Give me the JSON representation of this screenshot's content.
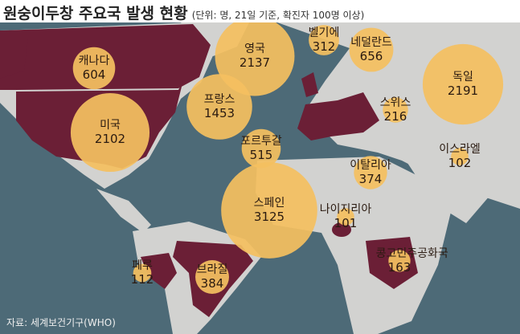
{
  "title": "원숭이두창 주요국 발생 현황",
  "subtitle": "(단위: 명, 21일 기준, 확진자 100명 이상)",
  "source": "자료: 세계보건기구(WHO)",
  "countries": [
    {
      "name": "캐나다",
      "value": 604
    },
    {
      "name": "영국",
      "value": 2137
    },
    {
      "name": "벨기에",
      "value": 312
    },
    {
      "name": "네덜란드",
      "value": 656
    },
    {
      "name": "독일",
      "value": 2191
    },
    {
      "name": "프랑스",
      "value": 1453
    },
    {
      "name": "미국",
      "value": 2102
    },
    {
      "name": "스위스",
      "value": 216
    },
    {
      "name": "포르투갈",
      "value": 515
    },
    {
      "name": "이스라엘",
      "value": 102
    },
    {
      "name": "이탈리아",
      "value": 374
    },
    {
      "name": "스페인",
      "value": 3125
    },
    {
      "name": "나이지리아",
      "value": 101
    },
    {
      "name": "콩고민주공화국",
      "value": 163
    },
    {
      "name": "페루",
      "value": 112
    },
    {
      "name": "브라질",
      "value": 384
    }
  ]
}
